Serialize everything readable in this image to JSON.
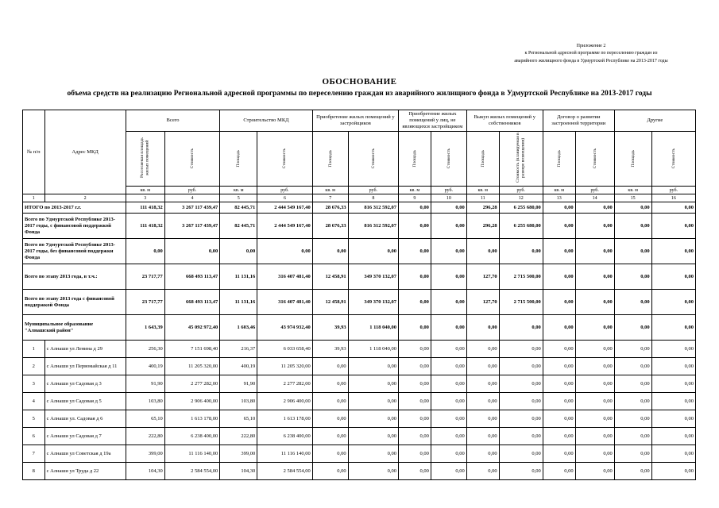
{
  "page": {
    "annotation": [
      "Приложение 2",
      "к Региональной адресной программе по переселению граждан из",
      "аварийного жилищного фонда в Удмуртской Республике на 2013-2017 годы"
    ],
    "title": "ОБОСНОВАНИЕ",
    "subtitle": "объема средств на реализацию Региональной адресной программы по переселению граждан из аварийного жилищного фонда в Удмуртской Республике на 2013-2017 годы"
  },
  "table": {
    "header": {
      "col_num": "№ п/п",
      "col_address": "Адрес МКД",
      "groups": [
        {
          "label": "Всего",
          "sub": [
            "Расселяемая площадь жилых помещений",
            "Стоимость"
          ]
        },
        {
          "label": "Строительство МКД",
          "sub": [
            "Площадь",
            "Стоимость"
          ]
        },
        {
          "label": "Приобретение жилых помещений у застройщиков",
          "sub": [
            "Площадь",
            "Стоимость"
          ]
        },
        {
          "label": "Приобретение жилых помещений у лиц, не являющихся застройщиком",
          "sub": [
            "Площадь",
            "Стоимость"
          ]
        },
        {
          "label": "Выкуп жилых помещений у собственников",
          "sub": [
            "Площадь",
            "Стоимость (планируемая в размере возмещения)"
          ]
        },
        {
          "label": "Договор о развитии застроенной территории",
          "sub": [
            "Площадь",
            "Стоимость"
          ]
        },
        {
          "label": "Другие",
          "sub": [
            "Площадь",
            "Стоимость"
          ]
        }
      ],
      "units": [
        "кв. м",
        "руб.",
        "кв. м",
        "руб.",
        "кв. м",
        "руб.",
        "кв. м",
        "руб.",
        "кв. м",
        "руб.",
        "кв. м",
        "руб.",
        "кв. м",
        "руб."
      ],
      "col_numbers": [
        "1",
        "2",
        "3",
        "4",
        "5",
        "6",
        "7",
        "8",
        "9",
        "10",
        "11",
        "12",
        "13",
        "14",
        "15",
        "16"
      ]
    },
    "rows": [
      {
        "section": true,
        "itogo": true,
        "num": "",
        "label": "ИТОГО по 2013-2017 г.г.",
        "values": [
          "111 418,32",
          "3 267 117 439,47",
          "82 445,71",
          "2 444 549 167,40",
          "28 676,33",
          "816 312 592,07",
          "0,00",
          "0,00",
          "296,28",
          "6 255 680,00",
          "0,00",
          "0,00",
          "0,00",
          "0,00"
        ]
      },
      {
        "section": true,
        "num": "",
        "label": "Всего по Удмуртской Республике 2013-2017 годы, с финансовой поддержкой Фонда",
        "values": [
          "111 418,32",
          "3 267 117 439,47",
          "82 445,71",
          "2 444 549 167,40",
          "28 676,33",
          "816 312 592,07",
          "0,00",
          "0,00",
          "296,28",
          "6 255 680,00",
          "0,00",
          "0,00",
          "0,00",
          "0,00"
        ]
      },
      {
        "section": true,
        "num": "",
        "label": "Всего по Удмуртской Республике 2013-2017 годы, без финансовой поддержки Фонда",
        "values": [
          "0,00",
          "0,00",
          "0,00",
          "0,00",
          "0,00",
          "0,00",
          "0,00",
          "0,00",
          "0,00",
          "0,00",
          "0,00",
          "0,00",
          "0,00",
          "0,00"
        ]
      },
      {
        "section": true,
        "num": "",
        "label": "Всего по этапу 2013 года, в т.ч.:",
        "values": [
          "23 717,77",
          "668 493 113,47",
          "11 131,16",
          "316 407 481,40",
          "12 458,91",
          "349 370 132,07",
          "0,00",
          "0,00",
          "127,70",
          "2 715 500,00",
          "0,00",
          "0,00",
          "0,00",
          "0,00"
        ]
      },
      {
        "section": true,
        "num": "",
        "label": "Всего по этапу 2013 года с финансовой поддержкой Фонда",
        "values": [
          "23 717,77",
          "668 493 113,47",
          "11 131,16",
          "316 407 481,40",
          "12 458,91",
          "349 370 132,07",
          "0,00",
          "0,00",
          "127,70",
          "2 715 500,00",
          "0,00",
          "0,00",
          "0,00",
          "0,00"
        ]
      },
      {
        "section": true,
        "num": "",
        "label": "Муниципальное образование \"Алнашский район\"",
        "values": [
          "1 643,39",
          "45 092 972,40",
          "1 603,46",
          "43 974 932,40",
          "39,93",
          "1 118 040,00",
          "0,00",
          "0,00",
          "0,00",
          "0,00",
          "0,00",
          "0,00",
          "0,00",
          "0,00"
        ]
      },
      {
        "section": false,
        "num": "1",
        "label": "с Алнаши ул Ленина д 29",
        "values": [
          "256,30",
          "7 151 698,40",
          "216,37",
          "6 033 658,40",
          "39,93",
          "1 118 040,00",
          "0,00",
          "0,00",
          "0,00",
          "0,00",
          "0,00",
          "0,00",
          "0,00",
          "0,00"
        ]
      },
      {
        "section": false,
        "num": "2",
        "label": "с Алнаши ул Первомайская д 11",
        "values": [
          "400,19",
          "11 205 320,00",
          "400,19",
          "11 205 320,00",
          "0,00",
          "0,00",
          "0,00",
          "0,00",
          "0,00",
          "0,00",
          "0,00",
          "0,00",
          "0,00",
          "0,00"
        ]
      },
      {
        "section": false,
        "num": "3",
        "label": "с Алнаши ул Садовая д 3",
        "values": [
          "91,90",
          "2 277 282,00",
          "91,90",
          "2 277 282,00",
          "0,00",
          "0,00",
          "0,00",
          "0,00",
          "0,00",
          "0,00",
          "0,00",
          "0,00",
          "0,00",
          "0,00"
        ]
      },
      {
        "section": false,
        "num": "4",
        "label": "с Алнаши ул Садовая д 5",
        "values": [
          "103,80",
          "2 906 400,00",
          "103,80",
          "2 906 400,00",
          "0,00",
          "0,00",
          "0,00",
          "0,00",
          "0,00",
          "0,00",
          "0,00",
          "0,00",
          "0,00",
          "0,00"
        ]
      },
      {
        "section": false,
        "num": "5",
        "label": "с Алнаши ул. Садовая д 6",
        "values": [
          "65,10",
          "1 613 178,00",
          "65,10",
          "1 613 178,00",
          "0,00",
          "0,00",
          "0,00",
          "0,00",
          "0,00",
          "0,00",
          "0,00",
          "0,00",
          "0,00",
          "0,00"
        ]
      },
      {
        "section": false,
        "num": "6",
        "label": "с Алнаши ул Садовая д 7",
        "values": [
          "222,80",
          "6 238 400,00",
          "222,80",
          "6 238 400,00",
          "0,00",
          "0,00",
          "0,00",
          "0,00",
          "0,00",
          "0,00",
          "0,00",
          "0,00",
          "0,00",
          "0,00"
        ]
      },
      {
        "section": false,
        "num": "7",
        "label": "с Алнаши ул Советская д 19а",
        "values": [
          "399,00",
          "11 116 140,00",
          "399,00",
          "11 116 140,00",
          "0,00",
          "0,00",
          "0,00",
          "0,00",
          "0,00",
          "0,00",
          "0,00",
          "0,00",
          "0,00",
          "0,00"
        ]
      },
      {
        "section": false,
        "num": "8",
        "label": "с Алнаши ул Труда д 22",
        "values": [
          "104,30",
          "2 584 554,00",
          "104,30",
          "2 584 554,00",
          "0,00",
          "0,00",
          "0,00",
          "0,00",
          "0,00",
          "0,00",
          "0,00",
          "0,00",
          "0,00",
          "0,00"
        ]
      }
    ]
  }
}
